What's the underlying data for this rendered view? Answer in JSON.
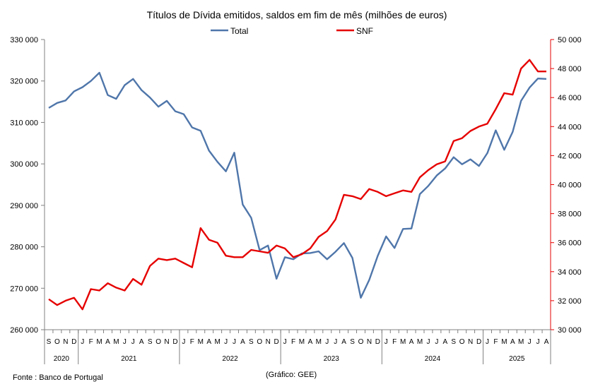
{
  "chart_data": {
    "type": "line",
    "title": "Títulos de Dívida emitidos, saldos em fim de mês  (milhões de euros)",
    "legend_position": "top",
    "grid": false,
    "series": [
      {
        "name": "Total",
        "axis": "left",
        "color": "#4f76aa",
        "values": [
          313.5,
          314.7,
          315.3,
          317.5,
          318.5,
          320.0,
          322.0,
          316.6,
          315.7,
          319.0,
          320.5,
          317.8,
          316.0,
          313.8,
          315.2,
          312.7,
          312.0,
          308.8,
          308.0,
          303.2,
          300.5,
          298.2,
          302.7,
          290.2,
          287.0,
          279.2,
          280.3,
          272.3,
          277.5,
          277.0,
          278.4,
          278.5,
          278.9,
          277.0,
          278.8,
          280.9,
          277.3,
          267.7,
          272.0,
          277.8,
          282.5,
          279.7,
          284.3,
          284.4,
          292.7,
          294.7,
          297.2,
          298.9,
          301.6,
          299.9,
          301.1,
          299.5,
          302.6,
          308.1,
          303.4,
          307.7,
          315.2,
          318.4,
          320.6,
          320.5
        ]
      },
      {
        "name": "SNF",
        "axis": "right",
        "color": "#e60000",
        "values": [
          32.1,
          31.7,
          32.0,
          32.2,
          31.4,
          32.8,
          32.7,
          33.2,
          32.9,
          32.7,
          33.5,
          33.1,
          34.4,
          34.9,
          34.8,
          34.9,
          34.6,
          34.3,
          37.0,
          36.2,
          36.0,
          35.1,
          35.0,
          35.0,
          35.5,
          35.4,
          35.3,
          35.8,
          35.6,
          35.0,
          35.2,
          35.6,
          36.4,
          36.8,
          37.6,
          39.3,
          39.2,
          39.0,
          39.7,
          39.5,
          39.2,
          39.4,
          39.6,
          39.5,
          40.5,
          41.0,
          41.4,
          41.6,
          43.0,
          43.2,
          43.7,
          44.0,
          44.2,
          45.2,
          46.3,
          46.2,
          48.0,
          48.6,
          47.8,
          47.8
        ]
      }
    ],
    "month_labels": [
      "S",
      "O",
      "N",
      "D",
      "J",
      "F",
      "M",
      "A",
      "M",
      "J",
      "J",
      "A",
      "S",
      "O",
      "N",
      "D",
      "J",
      "F",
      "M",
      "A",
      "M",
      "J",
      "J",
      "A",
      "S",
      "O",
      "N",
      "D",
      "J",
      "F",
      "M",
      "A",
      "M",
      "J",
      "J",
      "A",
      "S",
      "O",
      "N",
      "D",
      "J",
      "F",
      "M",
      "A",
      "M",
      "J",
      "J",
      "A",
      "S",
      "O",
      "N",
      "D",
      "J",
      "F",
      "M",
      "A",
      "M",
      "J",
      "J",
      "A"
    ],
    "year_groups": [
      {
        "label": "2020",
        "start": 0,
        "end": 3
      },
      {
        "label": "2021",
        "start": 4,
        "end": 15
      },
      {
        "label": "2022",
        "start": 16,
        "end": 27
      },
      {
        "label": "2023",
        "start": 28,
        "end": 39
      },
      {
        "label": "2024",
        "start": 40,
        "end": 51
      },
      {
        "label": "2025",
        "start": 52,
        "end": 59
      }
    ],
    "y_left": {
      "min": 260,
      "max": 330,
      "ticks": [
        260,
        270,
        280,
        290,
        300,
        310,
        320,
        330
      ],
      "tick_labels": [
        "260 000",
        "270 000",
        "280 000",
        "290 000",
        "300 000",
        "310 000",
        "320 000",
        "330 000"
      ]
    },
    "y_right": {
      "min": 30,
      "max": 50,
      "color": "#e60000",
      "ticks": [
        30,
        32,
        34,
        36,
        38,
        40,
        42,
        44,
        46,
        48,
        50
      ],
      "tick_labels": [
        "30 000",
        "32 000",
        "34 000",
        "36 000",
        "38 000",
        "40 000",
        "42 000",
        "44 000",
        "46 000",
        "48 000",
        "50 000"
      ]
    }
  },
  "footer": {
    "source": "Fonte : Banco de Portugal",
    "credit": "(Gráfico: GEE)"
  }
}
